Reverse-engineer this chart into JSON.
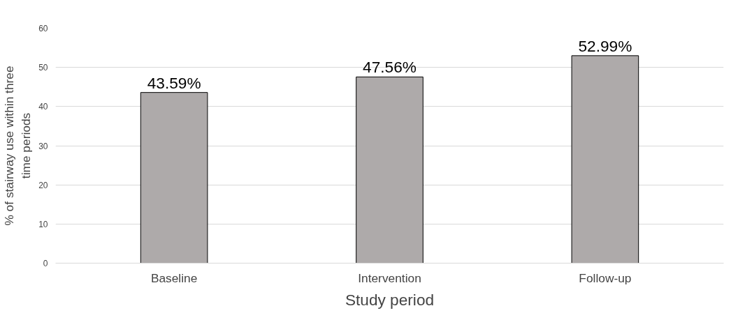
{
  "chart_data": {
    "type": "bar",
    "xlabel": "Study period",
    "ylabel": "% of stairway use within three time periods",
    "categories": [
      "Baseline",
      "Intervention",
      "Follow-up"
    ],
    "values": [
      43.59,
      47.56,
      52.99
    ],
    "value_labels": [
      "43.59%",
      "47.56%",
      "52.99%"
    ],
    "color": "#aeaaaa",
    "ylim": [
      0,
      60
    ],
    "yticks": [
      0,
      10,
      20,
      30,
      40,
      50,
      60
    ],
    "grid": "y"
  }
}
